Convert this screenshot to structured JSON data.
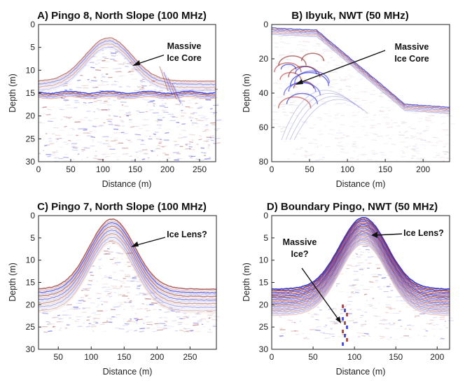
{
  "figure": {
    "panels": [
      {
        "title": "A) Pingo 8, North Slope (100 MHz)",
        "xlabel": "Distance (m)",
        "ylabel": "Depth (m)",
        "xticks": [
          0,
          50,
          100,
          150,
          200,
          250
        ],
        "yticks": [
          0,
          5,
          10,
          15,
          20,
          25,
          30
        ],
        "xlim": [
          0,
          275
        ],
        "ylim": [
          0,
          30
        ],
        "annotations": [
          {
            "lines": [
              "Massive",
              "Ice Core"
            ]
          }
        ]
      },
      {
        "title": "B) Ibyuk, NWT (50 MHz)",
        "xlabel": "Distance (m)",
        "ylabel": "Depth (m)",
        "xticks": [
          0,
          50,
          100,
          150,
          200
        ],
        "yticks": [
          0,
          20,
          40,
          60,
          80
        ],
        "xlim": [
          0,
          235
        ],
        "ylim": [
          0,
          80
        ],
        "annotations": [
          {
            "lines": [
              "Massive",
              "Ice Core"
            ]
          }
        ]
      },
      {
        "title": "C) Pingo 7, North Slope (100 MHz)",
        "xlabel": "Distance (m)",
        "ylabel": "Depth (m)",
        "xticks": [
          50,
          100,
          150,
          200,
          250
        ],
        "yticks": [
          0,
          5,
          10,
          15,
          20,
          25,
          30
        ],
        "xlim": [
          20,
          290
        ],
        "ylim": [
          0,
          30
        ],
        "annotations": [
          {
            "lines": [
              "Ice Lens?"
            ]
          }
        ]
      },
      {
        "title": "D) Boundary Pingo, NWT (50 MHz)",
        "xlabel": "Distance (m)",
        "ylabel": "Depth (m)",
        "xticks": [
          0,
          50,
          100,
          150,
          200
        ],
        "yticks": [
          0,
          5,
          10,
          15,
          20,
          25,
          30
        ],
        "xlim": [
          0,
          215
        ],
        "ylim": [
          0,
          30
        ],
        "annotations": [
          {
            "lines": [
              "Ice Lens?"
            ]
          },
          {
            "lines": [
              "Massive",
              "Ice?"
            ]
          }
        ]
      }
    ],
    "colors": {
      "positive": "#8b1a1a",
      "negative": "#1a1acc",
      "background": "#ffffff",
      "axis": "#222222"
    }
  }
}
